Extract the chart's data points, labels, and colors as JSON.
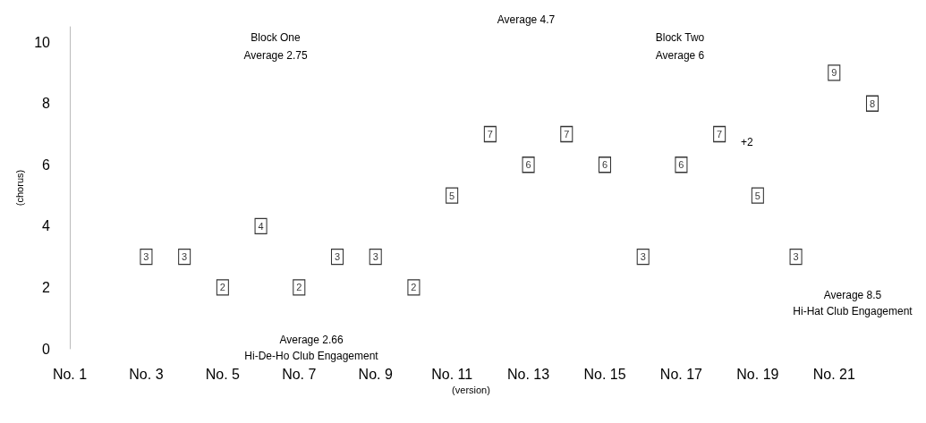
{
  "chart_data": {
    "type": "scatter",
    "xlabel": "(version)",
    "ylabel": "(chorus)",
    "categories": [
      "No. 1",
      null,
      "No. 3",
      null,
      "No. 5",
      null,
      "No. 7",
      null,
      "No. 9",
      null,
      "No. 11",
      null,
      "No. 13",
      null,
      "No. 15",
      null,
      "No. 17",
      null,
      "No. 19",
      null,
      "No. 21",
      null
    ],
    "values": [
      null,
      null,
      3,
      3,
      2,
      4,
      2,
      3,
      3,
      2,
      5,
      7,
      6,
      7,
      6,
      3,
      6,
      7,
      5,
      3,
      9,
      8
    ],
    "color": "#000000",
    "ylim": [
      0,
      10.5
    ],
    "yticks": [
      0,
      2,
      4,
      6,
      8,
      10
    ],
    "marker": "square",
    "data_labels": true,
    "annotations": [
      "Block One",
      "Average 2.75",
      "Average 4.7",
      "Block Two",
      "Average 6",
      "Average 2.66",
      "Hi-De-Ho Club Engagement",
      "Average 8.5",
      "Hi-Hat Club Engagement",
      "+2"
    ]
  }
}
